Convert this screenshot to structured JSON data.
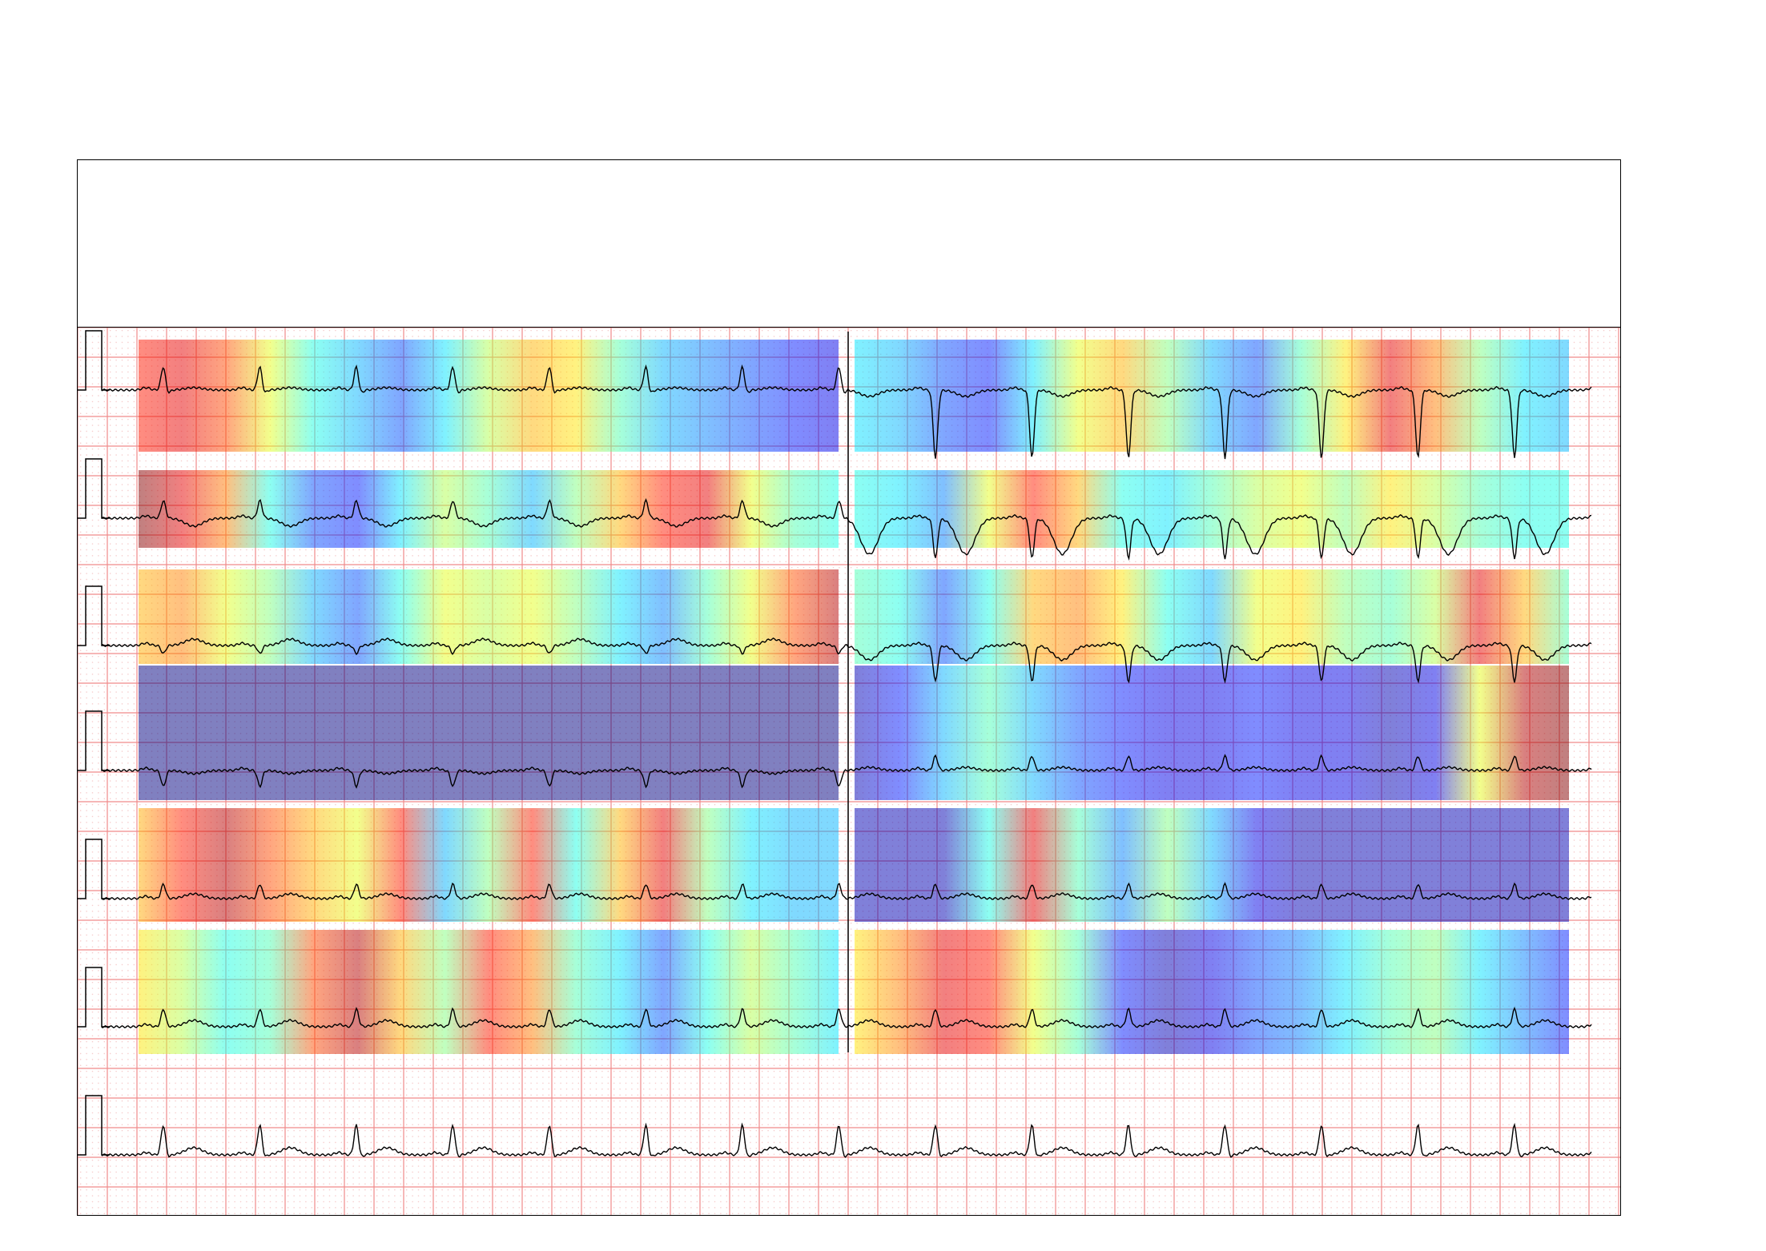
{
  "report": {
    "header_text": "",
    "paper_grid": {
      "minor_color": "#f2b3b3",
      "major_color": "#f08a8a"
    },
    "heatmap_colormap": "jet",
    "heatmap_opacity": 0.5,
    "trace_color": "#000000",
    "rows": [
      {
        "segments": [
          {
            "peaks": [
              0.12,
              0.22,
              0.28,
              0.18
            ],
            "heat": [
              0.85,
              0.9,
              0.8,
              0.6,
              0.4,
              0.3,
              0.2,
              0.35,
              0.55,
              0.7,
              0.65,
              0.45,
              0.3,
              0.25,
              0.2,
              0.15,
              0.1
            ]
          },
          {
            "peaks": [
              0.88,
              0.05,
              0.55,
              0.92
            ],
            "heat": [
              0.35,
              0.3,
              0.2,
              0.15,
              0.35,
              0.6,
              0.7,
              0.5,
              0.3,
              0.2,
              0.45,
              0.65,
              0.9,
              0.75,
              0.5,
              0.35,
              0.3
            ]
          }
        ]
      },
      {
        "segments": [
          {
            "peaks": [
              0.95,
              0.7,
              0.25,
              0.1
            ],
            "heat": [
              1.0,
              0.9,
              0.75,
              0.4,
              0.2,
              0.15,
              0.35,
              0.55,
              0.45,
              0.3,
              0.5,
              0.7,
              0.85,
              0.9,
              0.6,
              0.45,
              0.4
            ]
          },
          {
            "peaks": [
              0.3,
              0.2,
              0.85,
              0.6
            ],
            "heat": [
              0.4,
              0.35,
              0.25,
              0.6,
              0.85,
              0.7,
              0.4,
              0.35,
              0.45,
              0.55,
              0.6,
              0.5,
              0.65,
              0.55,
              0.45,
              0.4,
              0.4
            ]
          }
        ]
      },
      {
        "segments": [
          {
            "peaks": [
              0.75,
              0.2,
              0.35,
              0.95
            ],
            "heat": [
              0.7,
              0.75,
              0.6,
              0.5,
              0.3,
              0.2,
              0.4,
              0.6,
              0.55,
              0.6,
              0.5,
              0.35,
              0.25,
              0.45,
              0.6,
              0.8,
              0.95
            ]
          },
          {
            "peaks": [
              0.1,
              0.2,
              0.9,
              0.85
            ],
            "heat": [
              0.45,
              0.4,
              0.2,
              0.4,
              0.7,
              0.75,
              0.65,
              0.4,
              0.3,
              0.6,
              0.65,
              0.5,
              0.45,
              0.55,
              0.9,
              0.7,
              0.45
            ]
          }
        ]
      },
      {
        "segments": [
          {
            "peaks": [
              0.0,
              0.0,
              0.0,
              0.0
            ],
            "heat": [
              0.0,
              0.0,
              0.0,
              0.0,
              0.0,
              0.0,
              0.0,
              0.0,
              0.0,
              0.0,
              0.0,
              0.0,
              0.0,
              0.0,
              0.0,
              0.0,
              0.0
            ]
          },
          {
            "peaks": [
              0.1,
              0.3,
              0.15,
              0.95
            ],
            "heat": [
              0.05,
              0.15,
              0.3,
              0.45,
              0.3,
              0.2,
              0.15,
              0.1,
              0.1,
              0.15,
              0.1,
              0.1,
              0.05,
              0.1,
              0.6,
              0.95,
              1.0
            ]
          }
        ]
      },
      {
        "segments": [
          {
            "peaks": [
              0.85,
              0.6,
              0.9,
              0.4
            ],
            "heat": [
              0.7,
              0.85,
              0.95,
              0.8,
              0.7,
              0.6,
              0.85,
              0.3,
              0.5,
              0.85,
              0.4,
              0.7,
              0.9,
              0.5,
              0.35,
              0.3,
              0.3
            ]
          },
          {
            "peaks": [
              0.0,
              0.9,
              0.35,
              0.0
            ],
            "heat": [
              0.05,
              0.05,
              0.05,
              0.4,
              0.9,
              0.45,
              0.25,
              0.5,
              0.3,
              0.1,
              0.05,
              0.05,
              0.05,
              0.05,
              0.05,
              0.05,
              0.05
            ]
          }
        ]
      },
      {
        "segments": [
          {
            "peaks": [
              0.6,
              0.9,
              0.85,
              0.2
            ],
            "heat": [
              0.65,
              0.55,
              0.4,
              0.45,
              0.8,
              0.95,
              0.7,
              0.5,
              0.85,
              0.75,
              0.45,
              0.35,
              0.2,
              0.4,
              0.55,
              0.45,
              0.35
            ]
          },
          {
            "peaks": [
              0.7,
              0.95,
              0.1,
              0.2
            ],
            "heat": [
              0.65,
              0.75,
              0.9,
              0.85,
              0.6,
              0.45,
              0.15,
              0.05,
              0.1,
              0.2,
              0.25,
              0.35,
              0.45,
              0.5,
              0.35,
              0.25,
              0.15
            ]
          }
        ]
      }
    ]
  }
}
